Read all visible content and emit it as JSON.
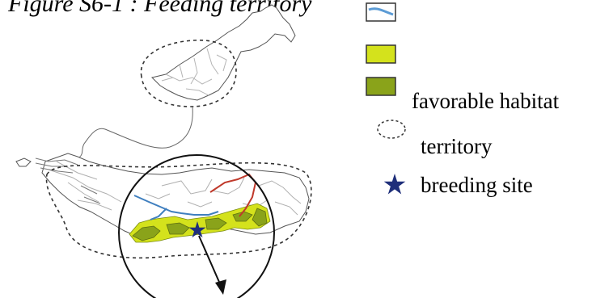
{
  "figure": {
    "title": "Figure S6-1 : Feeding territory"
  },
  "legend": {
    "items": [
      {
        "symbol": "water-line-icon",
        "label": ""
      },
      {
        "symbol": "light-green-box-icon",
        "label": ""
      },
      {
        "symbol": "dark-green-box-icon",
        "label": "favorable habitat"
      },
      {
        "symbol": "dashed-ellipse-icon",
        "label": "territory"
      },
      {
        "symbol": "star-icon",
        "label": "breeding site"
      }
    ]
  },
  "colors": {
    "water": "#5b9bd5",
    "light_green": "#d4e21c",
    "dark_green": "#8aa31a",
    "star": "#1f2f7a",
    "red_line": "#c0392b",
    "blue_line": "#3f7fbf",
    "coast": "#555555"
  }
}
